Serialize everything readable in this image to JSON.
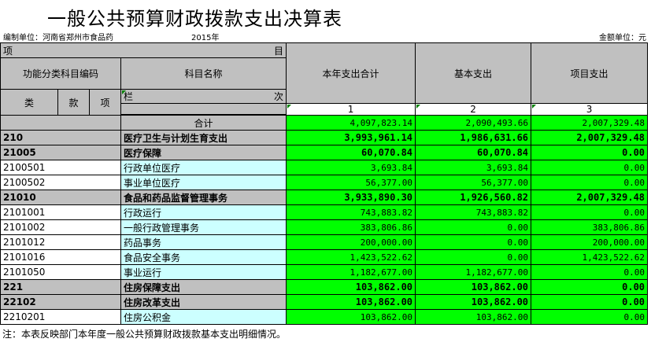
{
  "title": "一般公共预算财政拨款支出决算表",
  "meta": {
    "unit": "编制单位：河南省郑州市食品药",
    "year": "2015年",
    "money_unit": "金额单位：元"
  },
  "header": {
    "item_left": "项",
    "item_right": "目",
    "func_code": "功能分类科目编码",
    "subject_name": "科目名称",
    "col_total": "本年支出合计",
    "col_basic": "基本支出",
    "col_project": "项目支出",
    "lei": "类",
    "kuan": "款",
    "xiang": "项",
    "lan": "栏",
    "ci": "次",
    "num1": "1",
    "num2": "2",
    "num3": "3"
  },
  "total_row": {
    "name": "合计",
    "total": "4,097,823.14",
    "basic": "2,090,493.66",
    "project": "2,007,329.48"
  },
  "rows": [
    {
      "code": "210",
      "name": "医疗卫生与计划生育支出",
      "total": "3,993,961.14",
      "basic": "1,986,631.66",
      "project": "2,007,329.48",
      "level": 1
    },
    {
      "code": "21005",
      "name": "医疗保障",
      "total": "60,070.84",
      "basic": "60,070.84",
      "project": "0.00",
      "level": 1
    },
    {
      "code": "2100501",
      "name": "行政单位医疗",
      "total": "3,693.84",
      "basic": "3,693.84",
      "project": "0.00",
      "level": 2
    },
    {
      "code": "2100502",
      "name": "事业单位医疗",
      "total": "56,377.00",
      "basic": "56,377.00",
      "project": "0.00",
      "level": 2
    },
    {
      "code": "21010",
      "name": "食品和药品监督管理事务",
      "total": "3,933,890.30",
      "basic": "1,926,560.82",
      "project": "2,007,329.48",
      "level": 1
    },
    {
      "code": "2101001",
      "name": "行政运行",
      "total": "743,883.82",
      "basic": "743,883.82",
      "project": "0.00",
      "level": 2
    },
    {
      "code": "2101002",
      "name": "一般行政管理事务",
      "total": "383,806.86",
      "basic": "0.00",
      "project": "383,806.86",
      "level": 2
    },
    {
      "code": "2101012",
      "name": "药品事务",
      "total": "200,000.00",
      "basic": "0.00",
      "project": "200,000.00",
      "level": 2
    },
    {
      "code": "2101016",
      "name": "食品安全事务",
      "total": "1,423,522.62",
      "basic": "0.00",
      "project": "1,423,522.62",
      "level": 2
    },
    {
      "code": "2101050",
      "name": "事业运行",
      "total": "1,182,677.00",
      "basic": "1,182,677.00",
      "project": "0.00",
      "level": 2
    },
    {
      "code": "221",
      "name": "住房保障支出",
      "total": "103,862.00",
      "basic": "103,862.00",
      "project": "0.00",
      "level": 1
    },
    {
      "code": "22102",
      "name": "住房改革支出",
      "total": "103,862.00",
      "basic": "103,862.00",
      "project": "0.00",
      "level": 1
    },
    {
      "code": "2210201",
      "name": "住房公积金",
      "total": "103,862.00",
      "basic": "103,862.00",
      "project": "0.00",
      "level": 2
    }
  ],
  "note": "注：本表反映部门本年度一般公共预算财政拨款基本支出明细情况。",
  "colors": {
    "green": "#00ff00",
    "cyan": "#ccffff",
    "gray": "#c0c0c0"
  }
}
